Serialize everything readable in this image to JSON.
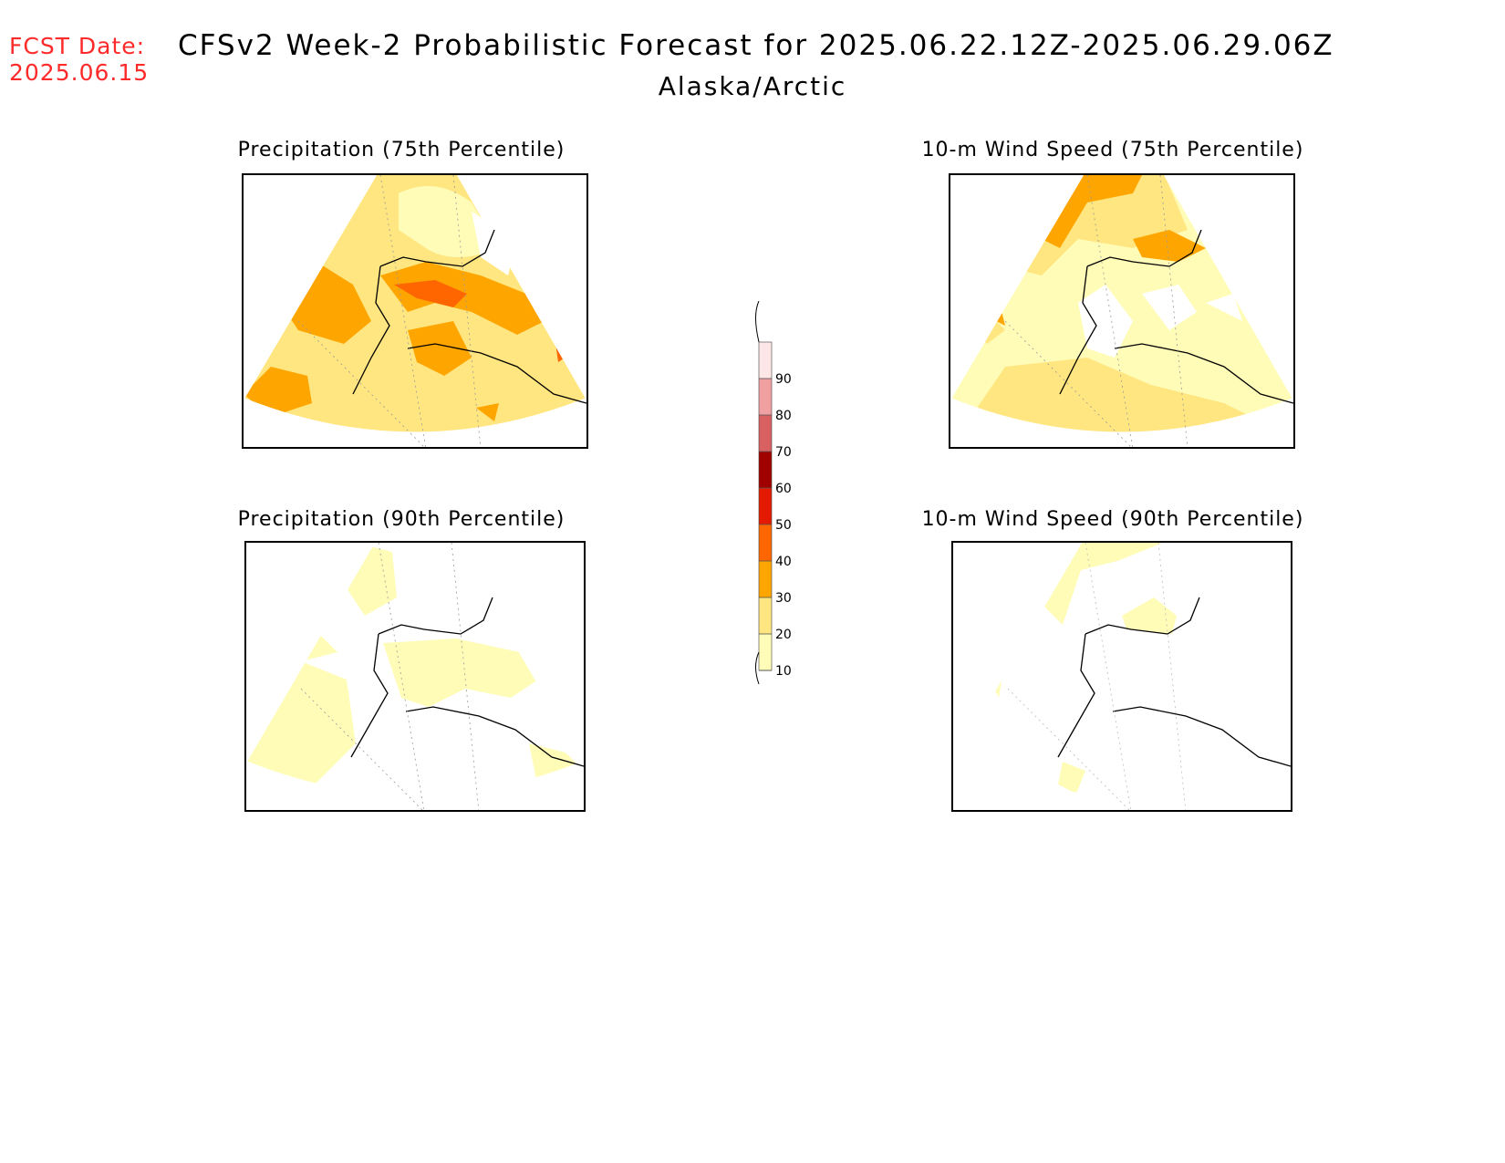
{
  "header": {
    "fcst_label": "FCST Date:",
    "fcst_date": "2025.06.15",
    "title": "CFSv2 Week-2 Probabilistic Forecast for 2025.06.22.12Z-2025.06.29.06Z",
    "region": "Alaska/Arctic"
  },
  "panels": [
    {
      "title": "Precipitation (75th Percentile)",
      "level": "high-precip"
    },
    {
      "title": "10-m Wind Speed (75th Percentile)",
      "level": "high-wind"
    },
    {
      "title": "Precipitation (90th Percentile)",
      "level": "low-precip"
    },
    {
      "title": "10-m Wind Speed (90th Percentile)",
      "level": "low-wind"
    }
  ],
  "colorbar": {
    "levels": [
      "10",
      "20",
      "30",
      "40",
      "50",
      "60",
      "70",
      "80",
      "90"
    ],
    "colors": [
      "#fffcb8",
      "#ffe680",
      "#ffa500",
      "#ff6600",
      "#e41a00",
      "#a00000",
      "#d96060",
      "#f0a0a0",
      "#fde6e6"
    ]
  }
}
